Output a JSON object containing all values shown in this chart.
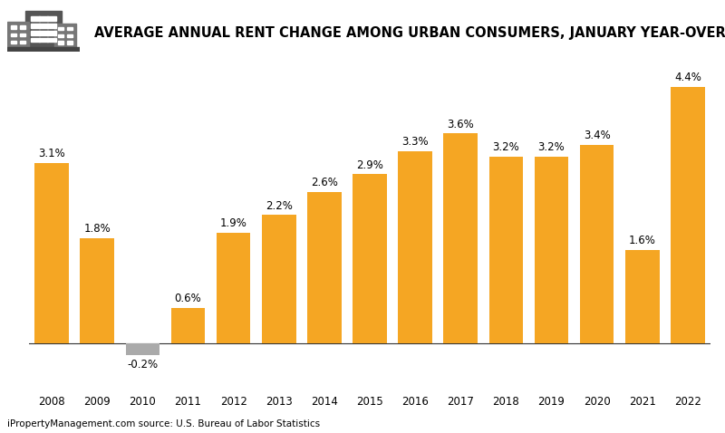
{
  "title": "AVERAGE ANNUAL RENT CHANGE AMONG URBAN CONSUMERS, JANUARY YEAR-OVER-YEAR",
  "categories": [
    "2008",
    "2009",
    "2010",
    "2011",
    "2012",
    "2013",
    "2014",
    "2015",
    "2016",
    "2017",
    "2018",
    "2019",
    "2020",
    "2021",
    "2022"
  ],
  "values": [
    3.1,
    1.8,
    -0.2,
    0.6,
    1.9,
    2.2,
    2.6,
    2.9,
    3.3,
    3.6,
    3.2,
    3.2,
    3.4,
    1.6,
    4.4
  ],
  "bar_color_positive": "#F5A623",
  "bar_color_negative": "#AAAAAA",
  "background_color": "#FFFFFF",
  "title_fontsize": 10.5,
  "label_fontsize": 8.5,
  "tick_fontsize": 8.5,
  "source_text": "iPropertyManagement.com source: U.S. Bureau of Labor Statistics",
  "source_fontsize": 7.5,
  "ylim": [
    -0.65,
    5.0
  ],
  "bar_width": 0.75
}
